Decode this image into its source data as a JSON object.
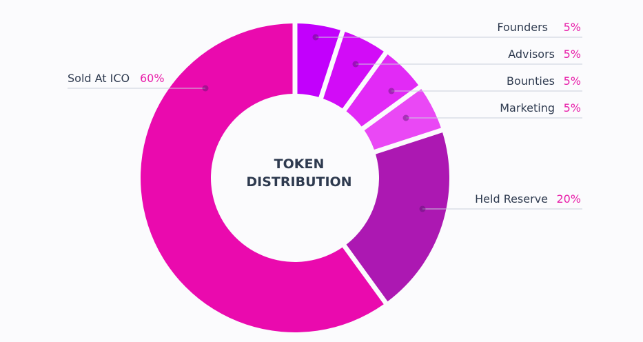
{
  "chart_data": {
    "type": "pie",
    "title": "TOKEN DISTRIBUTION",
    "center_label_lines": [
      "TOKEN",
      "DISTRIBUTION"
    ],
    "value_suffix": "%",
    "legend_placement": "callouts",
    "label_color": "#2e3a4f",
    "value_color": "#e81ea9",
    "slices": [
      {
        "label": "Founders",
        "value": 5,
        "color": "#c200fc"
      },
      {
        "label": "Advisors",
        "value": 5,
        "color": "#d20cf7"
      },
      {
        "label": "Bounties",
        "value": 5,
        "color": "#e22af6"
      },
      {
        "label": "Marketing",
        "value": 5,
        "color": "#ea48f5"
      },
      {
        "label": "Held Reserve",
        "value": 20,
        "color": "#ac18b2"
      },
      {
        "label": "Sold At ICO",
        "value": 60,
        "color": "#ea0aae"
      }
    ]
  }
}
